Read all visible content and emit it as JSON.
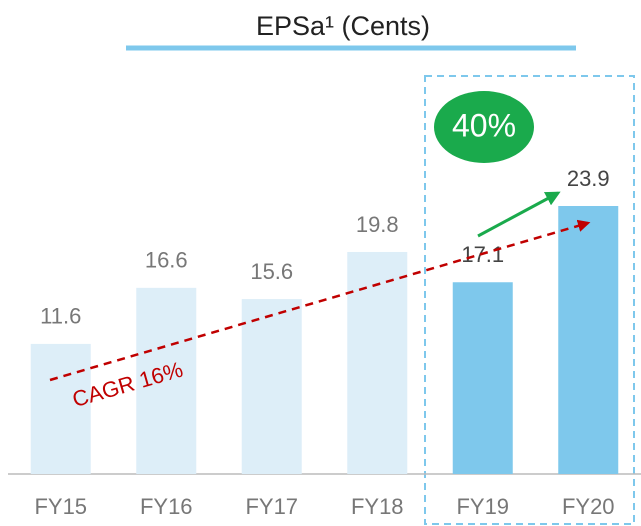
{
  "chart_data": {
    "type": "bar",
    "title": "EPSa¹ (Cents)",
    "categories": [
      "FY15",
      "FY16",
      "FY17",
      "FY18",
      "FY19",
      "FY20"
    ],
    "values": [
      11.6,
      16.6,
      15.6,
      19.8,
      17.1,
      23.9
    ],
    "colors": [
      "#ddeef8",
      "#ddeef8",
      "#ddeef8",
      "#ddeef8",
      "#7ec8ec",
      "#7ec8ec"
    ],
    "annotations": [
      "40%",
      "CAGR 16%"
    ]
  }
}
